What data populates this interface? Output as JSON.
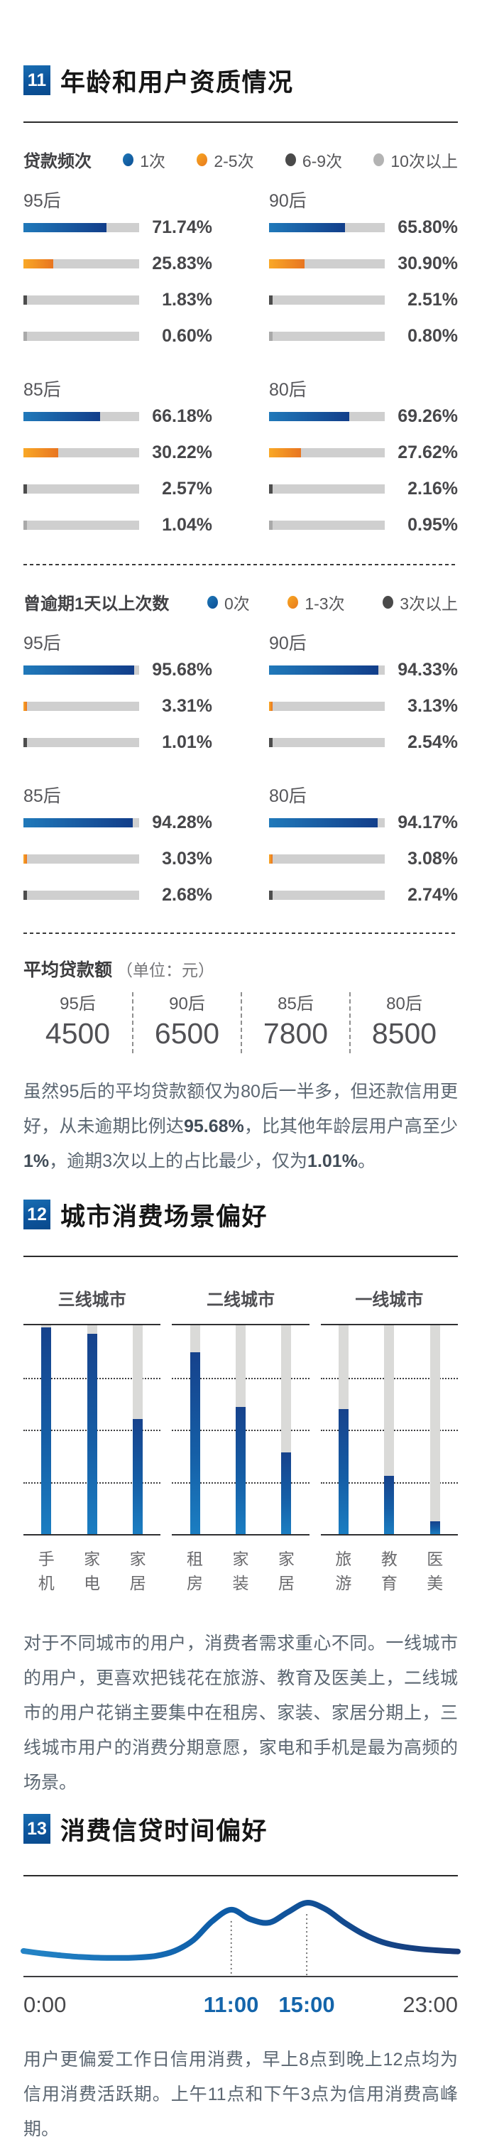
{
  "colors": {
    "accent_blue": "#1465ab",
    "bar_blue_gradient": [
      "#2079ba",
      "#123e8a"
    ],
    "bar_orange_gradient": [
      "#f9a826",
      "#e87521"
    ],
    "bar_dark_gray": "#4d4d4d",
    "bar_light_gray": "#a9a9a9",
    "bar_track": "#cfcfcf",
    "column_blue_gradient": [
      "#16428c",
      "#1b7ec2"
    ],
    "title_text": "#161616",
    "body_text": "#5b6671"
  },
  "section11": {
    "badge": "11",
    "title": "年龄和用户资质情况",
    "loan_freq_label": "贷款频次",
    "loan_freq_legend": [
      "1次",
      "2-5次",
      "6-9次",
      "10次以上"
    ],
    "overdue_label": "曾逾期1天以上次数",
    "overdue_legend": [
      "0次",
      "1-3次",
      "3次以上"
    ],
    "avg_label": "平均贷款额",
    "avg_unit": "（单位：元）",
    "paragraph": [
      {
        "t": "虽然95后的平均贷款额仅为80后一半多，但还款信用更好，从未逾期比例达",
        "b": false
      },
      {
        "t": "95.68%",
        "b": true
      },
      {
        "t": "，比其他年龄层用户高至少",
        "b": false
      },
      {
        "t": "1%",
        "b": true
      },
      {
        "t": "，逾期3次以上的占比最少，仅为",
        "b": false
      },
      {
        "t": "1.01%",
        "b": true
      },
      {
        "t": "。",
        "b": false
      }
    ]
  },
  "section12": {
    "badge": "12",
    "title": "城市消费场景偏好",
    "paragraph": "对于不同城市的用户，消费者需求重心不同。一线城市的用户，更喜欢把钱花在旅游、教育及医美上，二线城市的用户花销主要集中在租房、家装、家居分期上，三线城市用户的消费分期意愿，家电和手机是最为高频的场景。"
  },
  "section13": {
    "badge": "13",
    "title": "消费信贷时间偏好",
    "paragraph": "用户更偏爱工作日信用消费，早上8点到晚上12点均为信用消费活跃期。上午11点和下午3点为信用消费高峰期。"
  },
  "chart_data": [
    {
      "type": "bar",
      "title": "贷款频次",
      "categories": [
        "1次",
        "2-5次",
        "6-9次",
        "10次以上"
      ],
      "series": [
        {
          "name": "95后",
          "values": [
            71.74,
            25.83,
            1.83,
            0.6
          ]
        },
        {
          "name": "90后",
          "values": [
            65.8,
            30.9,
            2.51,
            0.8
          ]
        },
        {
          "name": "85后",
          "values": [
            66.18,
            30.22,
            2.57,
            1.04
          ]
        },
        {
          "name": "80后",
          "values": [
            69.26,
            27.62,
            2.16,
            0.95
          ]
        }
      ],
      "unit": "%"
    },
    {
      "type": "bar",
      "title": "曾逾期1天以上次数",
      "categories": [
        "0次",
        "1-3次",
        "3次以上"
      ],
      "series": [
        {
          "name": "95后",
          "values": [
            95.68,
            3.31,
            1.01
          ]
        },
        {
          "name": "90后",
          "values": [
            94.33,
            3.13,
            2.54
          ]
        },
        {
          "name": "85后",
          "values": [
            94.28,
            3.03,
            2.68
          ]
        },
        {
          "name": "80后",
          "values": [
            94.17,
            3.08,
            2.74
          ]
        }
      ],
      "unit": "%"
    },
    {
      "type": "table",
      "title": "平均贷款额（单位：元）",
      "categories": [
        "95后",
        "90后",
        "85后",
        "80后"
      ],
      "values": [
        4500,
        6500,
        7800,
        8500
      ]
    },
    {
      "type": "bar",
      "title": "城市消费场景偏好",
      "ylim": [
        0,
        100
      ],
      "groups": [
        {
          "name": "三线城市",
          "categories": [
            "手机",
            "家电",
            "家居"
          ],
          "values": [
            99,
            96,
            55
          ]
        },
        {
          "name": "二线城市",
          "categories": [
            "租房",
            "家装",
            "家居"
          ],
          "values": [
            87,
            61,
            39
          ]
        },
        {
          "name": "一线城市",
          "categories": [
            "旅游",
            "教育",
            "医美"
          ],
          "values": [
            60,
            28,
            6
          ]
        }
      ]
    },
    {
      "type": "line",
      "title": "消费信贷时间偏好",
      "x": [
        0,
        1,
        2,
        3,
        4,
        5,
        6,
        7,
        8,
        9,
        10,
        11,
        12,
        13,
        14,
        15,
        16,
        17,
        18,
        19,
        20,
        21,
        22,
        23
      ],
      "y": [
        25,
        22.5,
        20.5,
        19,
        18.2,
        18,
        18.4,
        20,
        25,
        36,
        55,
        66.5,
        57,
        53.5,
        64,
        73.5,
        67,
        53.5,
        42,
        34,
        29.5,
        27,
        25.5,
        24.5
      ],
      "x_ticks": [
        "0:00",
        "11:00",
        "15:00",
        "23:00"
      ],
      "peaks": [
        11,
        15
      ],
      "xlabel": "",
      "ylabel": ""
    }
  ]
}
